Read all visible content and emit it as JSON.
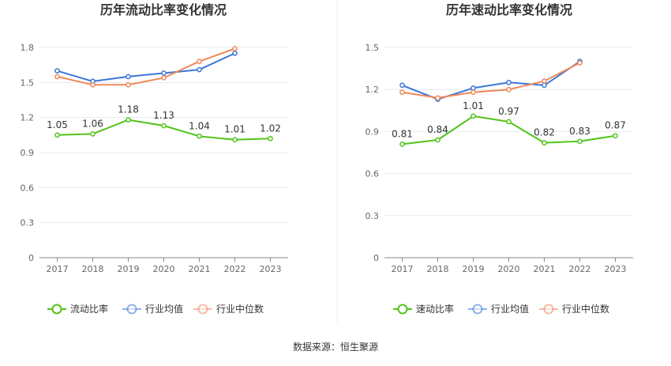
{
  "source": "数据来源：恒生聚源",
  "colors": {
    "company": "#52c41a",
    "industry_avg": "#3a76d8",
    "industry_median": "#f0885a",
    "grid": "#e6e9f0",
    "axis": "#888888"
  },
  "chart_data": [
    {
      "type": "line",
      "title": "历年流动比率变化情况",
      "x": [
        "2017",
        "2018",
        "2019",
        "2020",
        "2021",
        "2022",
        "2023"
      ],
      "ylim": [
        0,
        1.8
      ],
      "yticks": [
        "0",
        "0.3",
        "0.6",
        "0.9",
        "1.2",
        "1.5",
        "1.8"
      ],
      "grid": true,
      "legend_position": "bottom",
      "series": [
        {
          "name": "流动比率",
          "key": "company",
          "values": [
            1.05,
            1.06,
            1.18,
            1.13,
            1.04,
            1.01,
            1.02
          ],
          "labels": [
            "1.05",
            "1.06",
            "1.18",
            "1.13",
            "1.04",
            "1.01",
            "1.02"
          ]
        },
        {
          "name": "行业均值",
          "key": "industry_avg",
          "values": [
            1.6,
            1.51,
            1.55,
            1.58,
            1.61,
            1.75,
            null
          ]
        },
        {
          "name": "行业中位数",
          "key": "industry_median",
          "values": [
            1.55,
            1.48,
            1.48,
            1.54,
            1.68,
            1.79,
            null
          ]
        }
      ]
    },
    {
      "type": "line",
      "title": "历年速动比率变化情况",
      "x": [
        "2017",
        "2018",
        "2019",
        "2020",
        "2021",
        "2022",
        "2023"
      ],
      "ylim": [
        0,
        1.5
      ],
      "yticks": [
        "0",
        "0.3",
        "0.6",
        "0.9",
        "1.2",
        "1.5"
      ],
      "grid": true,
      "legend_position": "bottom",
      "series": [
        {
          "name": "速动比率",
          "key": "company",
          "values": [
            0.81,
            0.84,
            1.01,
            0.97,
            0.82,
            0.83,
            0.87
          ],
          "labels": [
            "0.81",
            "0.84",
            "1.01",
            "0.97",
            "0.82",
            "0.83",
            "0.87"
          ]
        },
        {
          "name": "行业均值",
          "key": "industry_avg",
          "values": [
            1.23,
            1.13,
            1.21,
            1.25,
            1.23,
            1.4,
            null
          ]
        },
        {
          "name": "行业中位数",
          "key": "industry_median",
          "values": [
            1.18,
            1.14,
            1.18,
            1.2,
            1.26,
            1.39,
            null
          ]
        }
      ]
    }
  ]
}
